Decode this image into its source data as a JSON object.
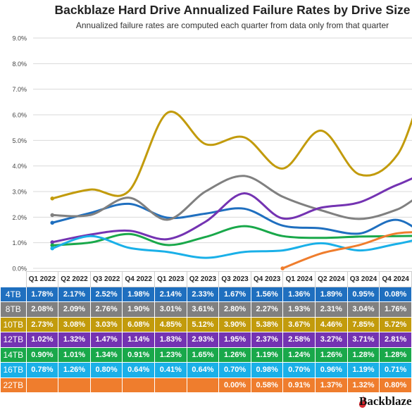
{
  "brand": {
    "name": "Backblaze",
    "color": "#d7282f"
  },
  "chart_data": {
    "type": "line",
    "title": "Backblaze Hard Drive Annualized Failure Rates by Drive Size",
    "subtitle": "Annualized failure rates are computed each quarter from data only from that quarter",
    "categories": [
      "Q1 2022",
      "Q2 2022",
      "Q3 2022",
      "Q4 2022",
      "Q1 2023",
      "Q2 2023",
      "Q3 2023",
      "Q4 2023",
      "Q1 2024",
      "Q2 2024",
      "Q3 2024",
      "Q4 2024"
    ],
    "y_ticks": [
      "0.0%",
      "1.0%",
      "2.0%",
      "3.0%",
      "4.0%",
      "5.0%",
      "6.0%",
      "7.0%",
      "8.0%",
      "9.0%"
    ],
    "ylim": [
      0,
      9
    ],
    "grid": true,
    "series": [
      {
        "name": "4TB",
        "color": "#1f6fbf",
        "values": [
          1.78,
          2.17,
          2.52,
          1.98,
          2.14,
          2.33,
          1.67,
          1.56,
          1.36,
          1.89,
          0.95,
          0.08
        ],
        "labels": [
          "1.78%",
          "2.17%",
          "2.52%",
          "1.98%",
          "2.14%",
          "2.33%",
          "1.67%",
          "1.56%",
          "1.36%",
          "1.89%",
          "0.95%",
          "0.08%"
        ]
      },
      {
        "name": "8TB",
        "color": "#808080",
        "values": [
          2.08,
          2.09,
          2.76,
          1.9,
          3.01,
          3.61,
          2.8,
          2.27,
          1.93,
          2.31,
          3.04,
          1.76
        ],
        "labels": [
          "2.08%",
          "2.09%",
          "2.76%",
          "1.90%",
          "3.01%",
          "3.61%",
          "2.80%",
          "2.27%",
          "1.93%",
          "2.31%",
          "3.04%",
          "1.76%"
        ]
      },
      {
        "name": "10TB",
        "color": "#c29b0c",
        "values": [
          2.73,
          3.08,
          3.03,
          6.08,
          4.85,
          5.12,
          3.9,
          5.38,
          3.67,
          4.46,
          7.85,
          5.72
        ],
        "labels": [
          "2.73%",
          "3.08%",
          "3.03%",
          "6.08%",
          "4.85%",
          "5.12%",
          "3.90%",
          "5.38%",
          "3.67%",
          "4.46%",
          "7.85%",
          "5.72%"
        ]
      },
      {
        "name": "12TB",
        "color": "#7433b2",
        "values": [
          1.02,
          1.32,
          1.47,
          1.14,
          1.83,
          2.93,
          1.95,
          2.37,
          2.58,
          3.27,
          3.71,
          2.81
        ],
        "labels": [
          "1.02%",
          "1.32%",
          "1.47%",
          "1.14%",
          "1.83%",
          "2.93%",
          "1.95%",
          "2.37%",
          "2.58%",
          "3.27%",
          "3.71%",
          "2.81%"
        ]
      },
      {
        "name": "14TB",
        "color": "#19a84a",
        "values": [
          0.9,
          1.01,
          1.34,
          0.91,
          1.23,
          1.65,
          1.26,
          1.19,
          1.24,
          1.26,
          1.28,
          1.28
        ],
        "labels": [
          "0.90%",
          "1.01%",
          "1.34%",
          "0.91%",
          "1.23%",
          "1.65%",
          "1.26%",
          "1.19%",
          "1.24%",
          "1.26%",
          "1.28%",
          "1.28%"
        ]
      },
      {
        "name": "16TB",
        "color": "#1ab0e8",
        "values": [
          0.78,
          1.26,
          0.8,
          0.64,
          0.41,
          0.64,
          0.7,
          0.98,
          0.7,
          0.96,
          1.19,
          0.71
        ],
        "labels": [
          "0.78%",
          "1.26%",
          "0.80%",
          "0.64%",
          "0.41%",
          "0.64%",
          "0.70%",
          "0.98%",
          "0.70%",
          "0.96%",
          "1.19%",
          "0.71%"
        ]
      },
      {
        "name": "22TB",
        "color": "#ef7d2d",
        "values": [
          null,
          null,
          null,
          null,
          null,
          null,
          0.0,
          0.58,
          0.91,
          1.37,
          1.32,
          0.8
        ],
        "labels": [
          "",
          "",
          "",
          "",
          "",
          "",
          "0.00%",
          "0.58%",
          "0.91%",
          "1.37%",
          "1.32%",
          "0.80%"
        ]
      }
    ]
  }
}
